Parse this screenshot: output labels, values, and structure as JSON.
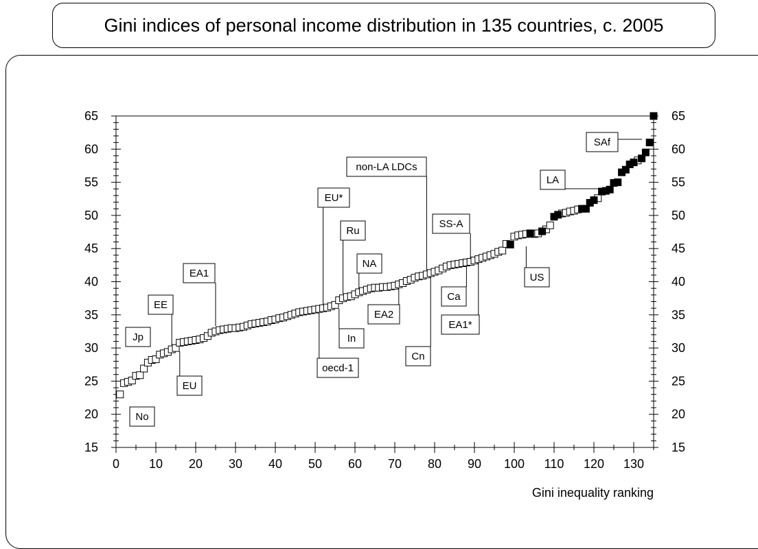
{
  "title": "Gini indices of personal income distribution in 135 countries, c. 2005",
  "chart_data": {
    "type": "scatter",
    "title": "Gini indices of personal income distribution in 135 countries, c. 2005",
    "xlabel": "Gini inequality ranking",
    "ylabel": "",
    "xlim": [
      0,
      135
    ],
    "ylim": [
      15,
      65
    ],
    "x_ticks": [
      0,
      10,
      20,
      30,
      40,
      50,
      60,
      70,
      80,
      90,
      100,
      110,
      120,
      130
    ],
    "y_ticks": [
      15,
      20,
      25,
      30,
      35,
      40,
      45,
      50,
      55,
      60,
      65
    ],
    "right_axis_mirrors_left": true,
    "grid": false,
    "legend": "none",
    "colors": {
      "filled": "#000000",
      "hollow": "#ffffff",
      "stroke": "#000000"
    },
    "series": [
      {
        "marker": "hollow-square",
        "x": [
          1,
          2,
          3,
          4,
          5,
          6,
          7,
          8,
          9,
          10,
          11,
          12,
          13,
          14,
          15,
          16,
          17,
          18,
          19,
          20,
          21,
          22,
          23,
          24,
          25,
          26,
          27,
          28,
          29,
          30,
          31,
          32,
          33,
          34,
          35,
          36,
          37,
          38,
          39,
          40,
          41,
          42,
          43,
          44,
          45,
          46,
          47,
          48,
          49,
          50,
          51,
          52,
          53,
          54,
          55,
          56,
          57,
          58,
          59,
          60,
          61,
          62,
          63,
          64,
          65,
          66,
          67,
          68,
          69,
          70,
          71,
          72,
          73,
          74,
          75,
          76,
          77,
          78,
          79,
          80,
          81,
          82,
          83,
          84,
          85,
          86,
          87,
          88,
          89,
          90,
          91,
          92,
          93,
          94,
          95,
          96,
          97,
          98,
          100,
          101,
          102,
          103,
          105,
          106,
          108,
          109,
          112,
          113,
          114,
          115,
          116,
          121,
          131
        ],
        "y": [
          23,
          24.7,
          24.9,
          25.1,
          25.8,
          25.9,
          26.9,
          27.8,
          28.2,
          28.3,
          29,
          29.2,
          29.4,
          29.8,
          30,
          30.8,
          30.9,
          31,
          31.1,
          31.2,
          31.3,
          31.5,
          31.8,
          32.3,
          32.5,
          32.7,
          32.8,
          32.9,
          33,
          33,
          33.1,
          33.2,
          33.4,
          33.6,
          33.7,
          33.8,
          33.9,
          34,
          34.2,
          34.3,
          34.5,
          34.6,
          34.8,
          35,
          35.2,
          35.4,
          35.5,
          35.6,
          35.7,
          35.8,
          35.9,
          36,
          36.1,
          36.3,
          36.5,
          37.2,
          37.5,
          37.7,
          37.8,
          38.1,
          38.4,
          38.6,
          38.8,
          39,
          39.1,
          39.1,
          39.2,
          39.2,
          39.3,
          39.4,
          39.6,
          39.8,
          40.1,
          40.3,
          40.6,
          40.8,
          40.9,
          41.1,
          41.3,
          41.5,
          41.7,
          42,
          42.3,
          42.5,
          42.6,
          42.7,
          42.8,
          42.9,
          43,
          43.2,
          43.4,
          43.6,
          43.8,
          44,
          44.2,
          44.5,
          44.7,
          45.7,
          46.8,
          47,
          47.1,
          47.2,
          47.2,
          47.3,
          47.9,
          48.5,
          50.3,
          50.4,
          50.6,
          50.7,
          50.9,
          52.6,
          58.3
        ]
      },
      {
        "marker": "filled-square",
        "x": [
          99,
          104,
          107,
          110,
          111,
          117,
          118,
          119,
          120,
          122,
          123,
          124,
          125,
          126,
          127,
          128,
          129,
          130,
          132,
          133,
          134,
          135
        ],
        "y": [
          45.6,
          47.3,
          47.6,
          49.8,
          50.1,
          51,
          51,
          51.9,
          52.3,
          53.6,
          53.7,
          53.9,
          54.9,
          55,
          56.5,
          56.9,
          57.7,
          58,
          58.6,
          59.5,
          61,
          65
        ]
      }
    ],
    "annotations": [
      {
        "text": "Jp",
        "x": 3
      },
      {
        "text": "No",
        "x": 4
      },
      {
        "text": "EE",
        "x": 14
      },
      {
        "text": "EU",
        "x": 16
      },
      {
        "text": "EA1",
        "x": 25
      },
      {
        "text": "oecd-1",
        "x": 51
      },
      {
        "text": "EU*",
        "x": 52
      },
      {
        "text": "In",
        "x": 56
      },
      {
        "text": "Ru",
        "x": 57
      },
      {
        "text": "NA",
        "x": 61
      },
      {
        "text": "EA2",
        "x": 71
      },
      {
        "text": "non-LA LDCs",
        "x": 78
      },
      {
        "text": "Cn",
        "x": 79
      },
      {
        "text": "Ca",
        "x": 88
      },
      {
        "text": "SS-A",
        "x": 89
      },
      {
        "text": "EA1*",
        "x": 91
      },
      {
        "text": "US",
        "x": 103
      },
      {
        "text": "LA",
        "x": 120
      },
      {
        "text": "SAf",
        "x": 132
      }
    ]
  }
}
